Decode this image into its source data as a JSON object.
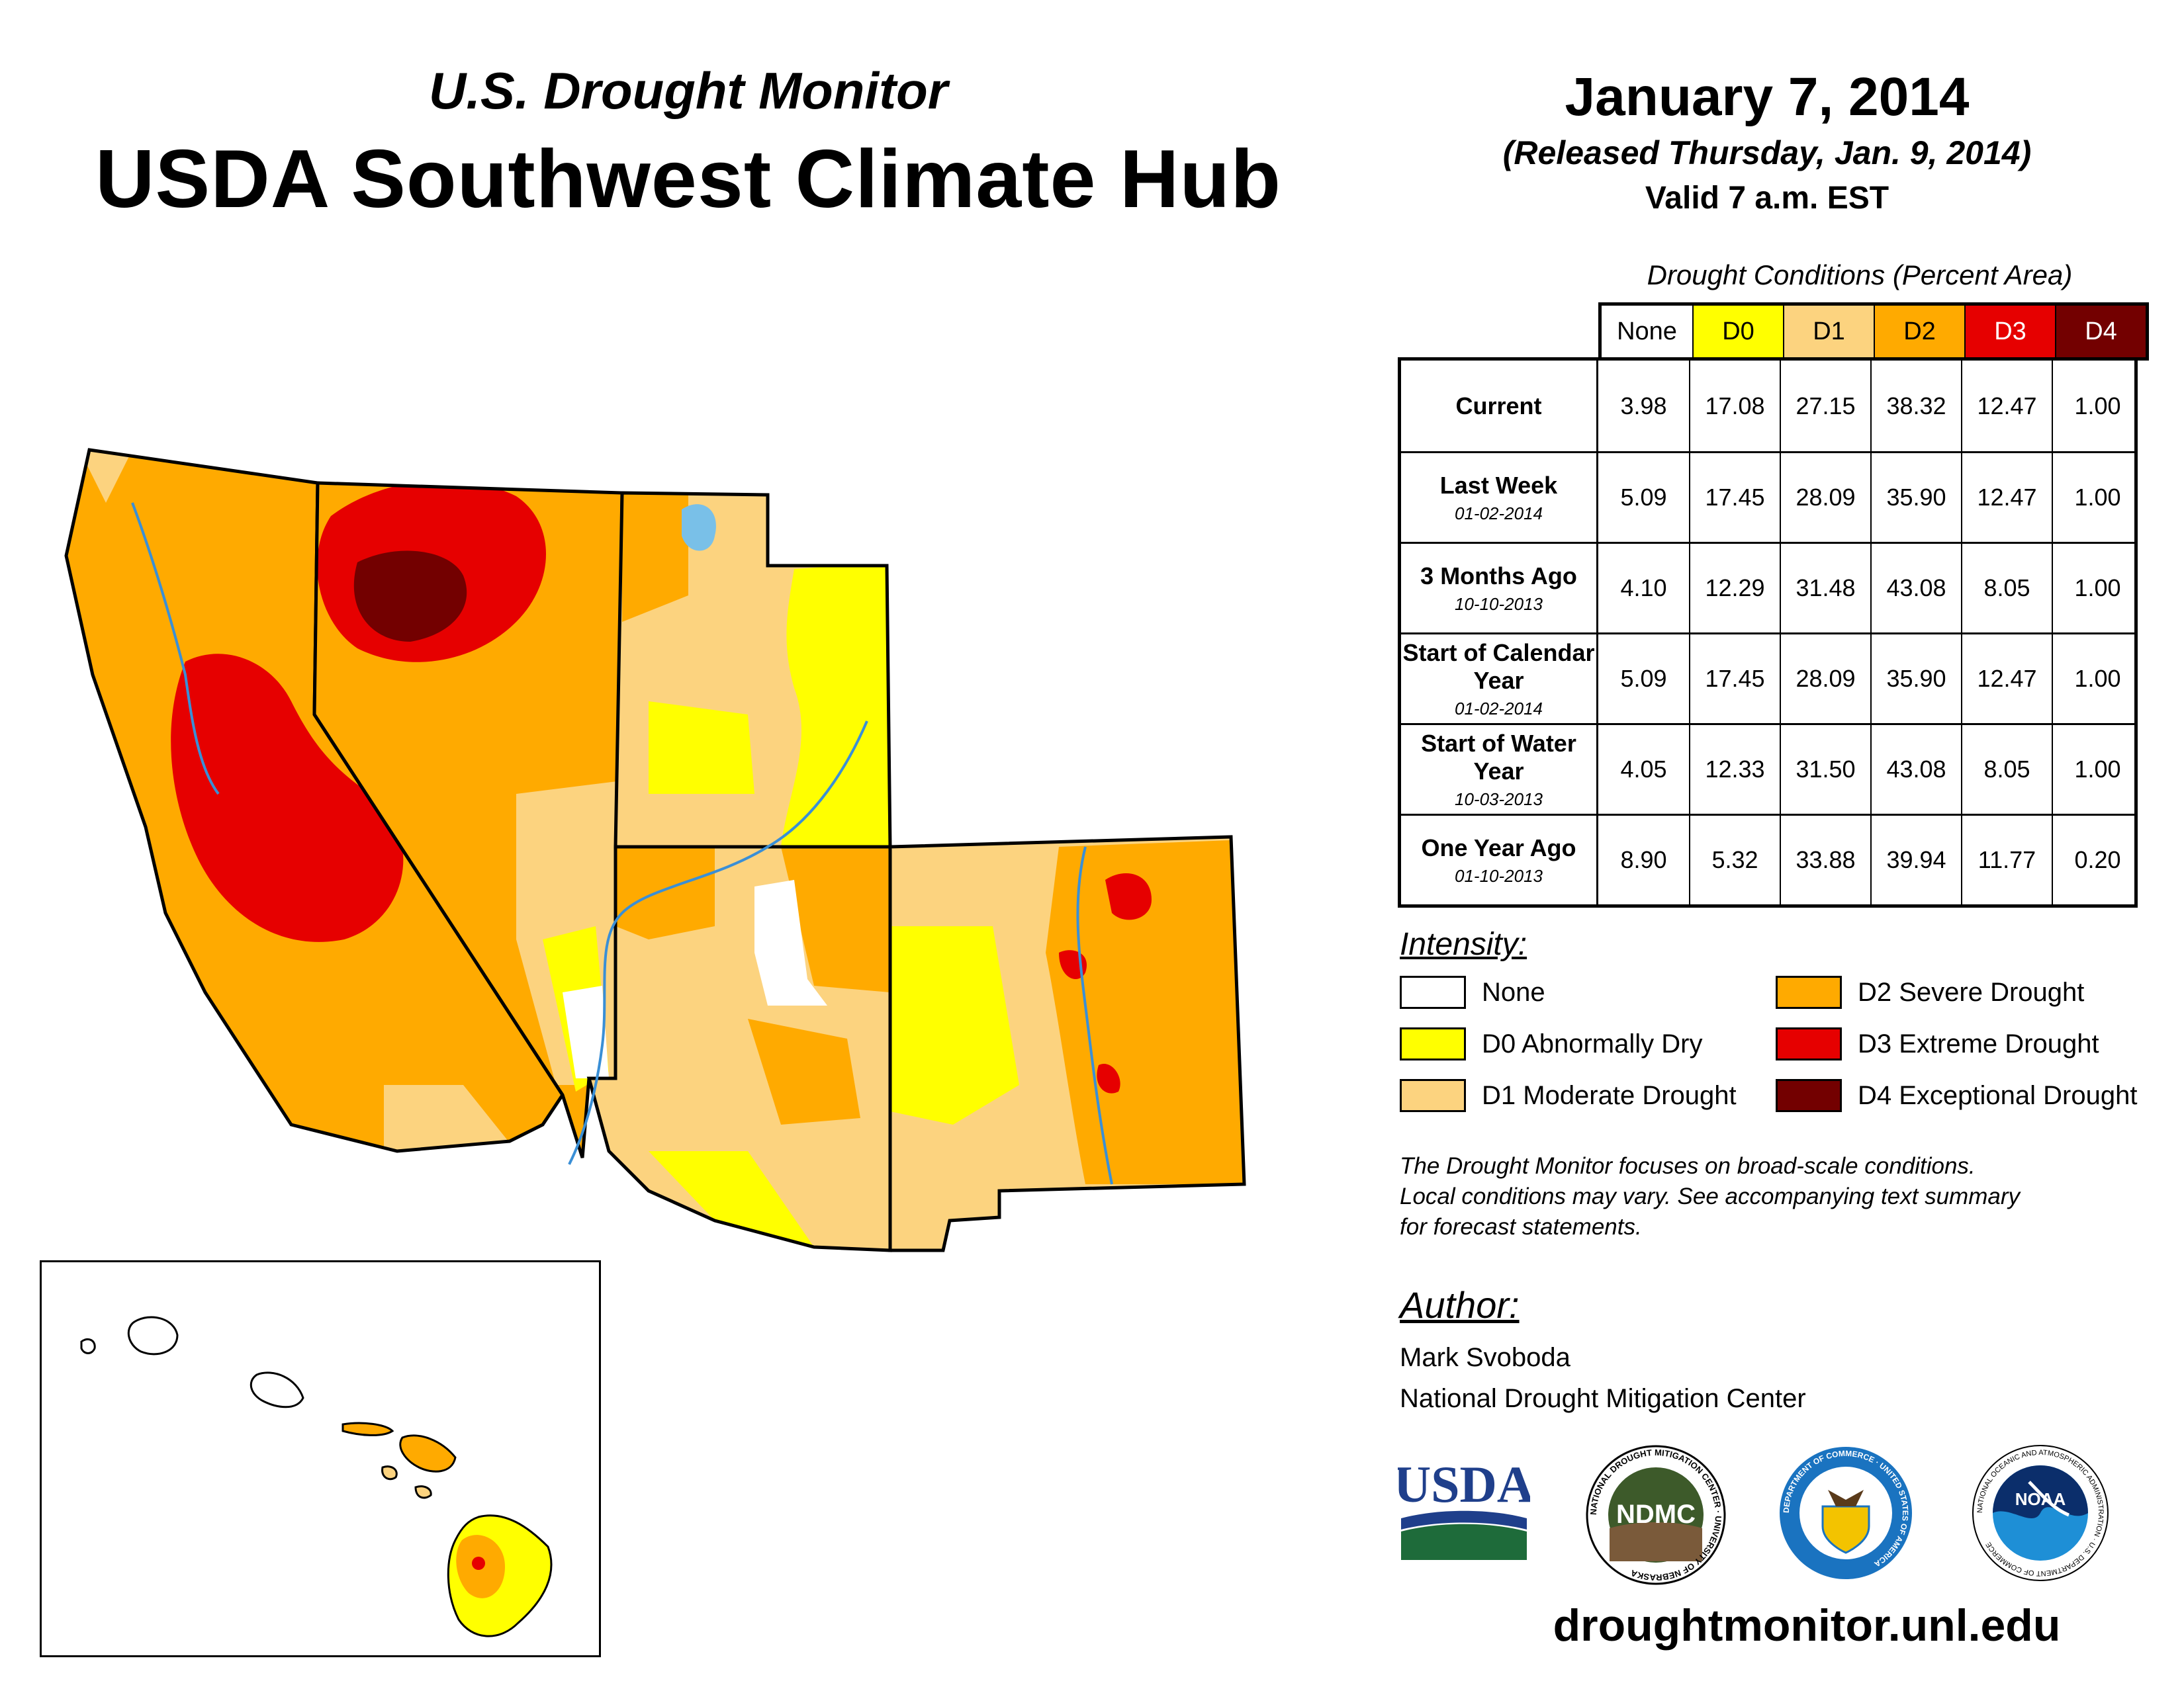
{
  "header": {
    "subtitle": "U.S. Drought Monitor",
    "title": "USDA Southwest Climate Hub"
  },
  "date_block": {
    "date": "January 7, 2014",
    "released": "(Released Thursday, Jan. 9, 2014)",
    "valid": "Valid 7 a.m. EST"
  },
  "conditions_table": {
    "caption": "Drought Conditions (Percent Area)",
    "columns": [
      "None",
      "D0",
      "D1",
      "D2",
      "D3",
      "D4"
    ],
    "column_colors": [
      "#ffffff",
      "#ffff00",
      "#fcd37f",
      "#ffaa00",
      "#e60000",
      "#730000"
    ],
    "rows": [
      {
        "label": "Current",
        "sub": "",
        "values": [
          "3.98",
          "17.08",
          "27.15",
          "38.32",
          "12.47",
          "1.00"
        ]
      },
      {
        "label": "Last Week",
        "sub": "01-02-2014",
        "values": [
          "5.09",
          "17.45",
          "28.09",
          "35.90",
          "12.47",
          "1.00"
        ]
      },
      {
        "label": "3 Months Ago",
        "sub": "10-10-2013",
        "values": [
          "4.10",
          "12.29",
          "31.48",
          "43.08",
          "8.05",
          "1.00"
        ]
      },
      {
        "label": "Start of Calendar Year",
        "sub": "01-02-2014",
        "values": [
          "5.09",
          "17.45",
          "28.09",
          "35.90",
          "12.47",
          "1.00"
        ]
      },
      {
        "label": "Start of Water Year",
        "sub": "10-03-2013",
        "values": [
          "4.05",
          "12.33",
          "31.50",
          "43.08",
          "8.05",
          "1.00"
        ]
      },
      {
        "label": "One Year Ago",
        "sub": "01-10-2013",
        "values": [
          "8.90",
          "5.32",
          "33.88",
          "39.94",
          "11.77",
          "0.20"
        ]
      }
    ]
  },
  "legend": {
    "title": "Intensity:",
    "items": [
      {
        "label": "None",
        "color": "#ffffff"
      },
      {
        "label": "D0 Abnormally Dry",
        "color": "#ffff00"
      },
      {
        "label": "D1 Moderate Drought",
        "color": "#fcd37f"
      },
      {
        "label": "D2 Severe Drought",
        "color": "#ffaa00"
      },
      {
        "label": "D3 Extreme Drought",
        "color": "#e60000"
      },
      {
        "label": "D4 Exceptional Drought",
        "color": "#730000"
      }
    ]
  },
  "disclaimer": {
    "line1": "The Drought Monitor focuses on broad-scale conditions.",
    "line2": "Local conditions may vary. See accompanying text summary",
    "line3": "for forecast statements."
  },
  "author": {
    "title": "Author:",
    "name": "Mark Svoboda",
    "org": "National Drought Mitigation Center"
  },
  "logos": {
    "usda": "USDA",
    "ndmc": "NDMC",
    "ndmc_ring": "NATIONAL DROUGHT MITIGATION CENTER · UNIVERSITY OF NEBRASKA",
    "doc_ring": "DEPARTMENT OF COMMERCE · UNITED STATES OF AMERICA",
    "noaa": "NOAA",
    "noaa_ring": "NATIONAL OCEANIC AND ATMOSPHERIC ADMINISTRATION · U.S. DEPARTMENT OF COMMERCE"
  },
  "footer": {
    "url": "droughtmonitor.unl.edu"
  }
}
